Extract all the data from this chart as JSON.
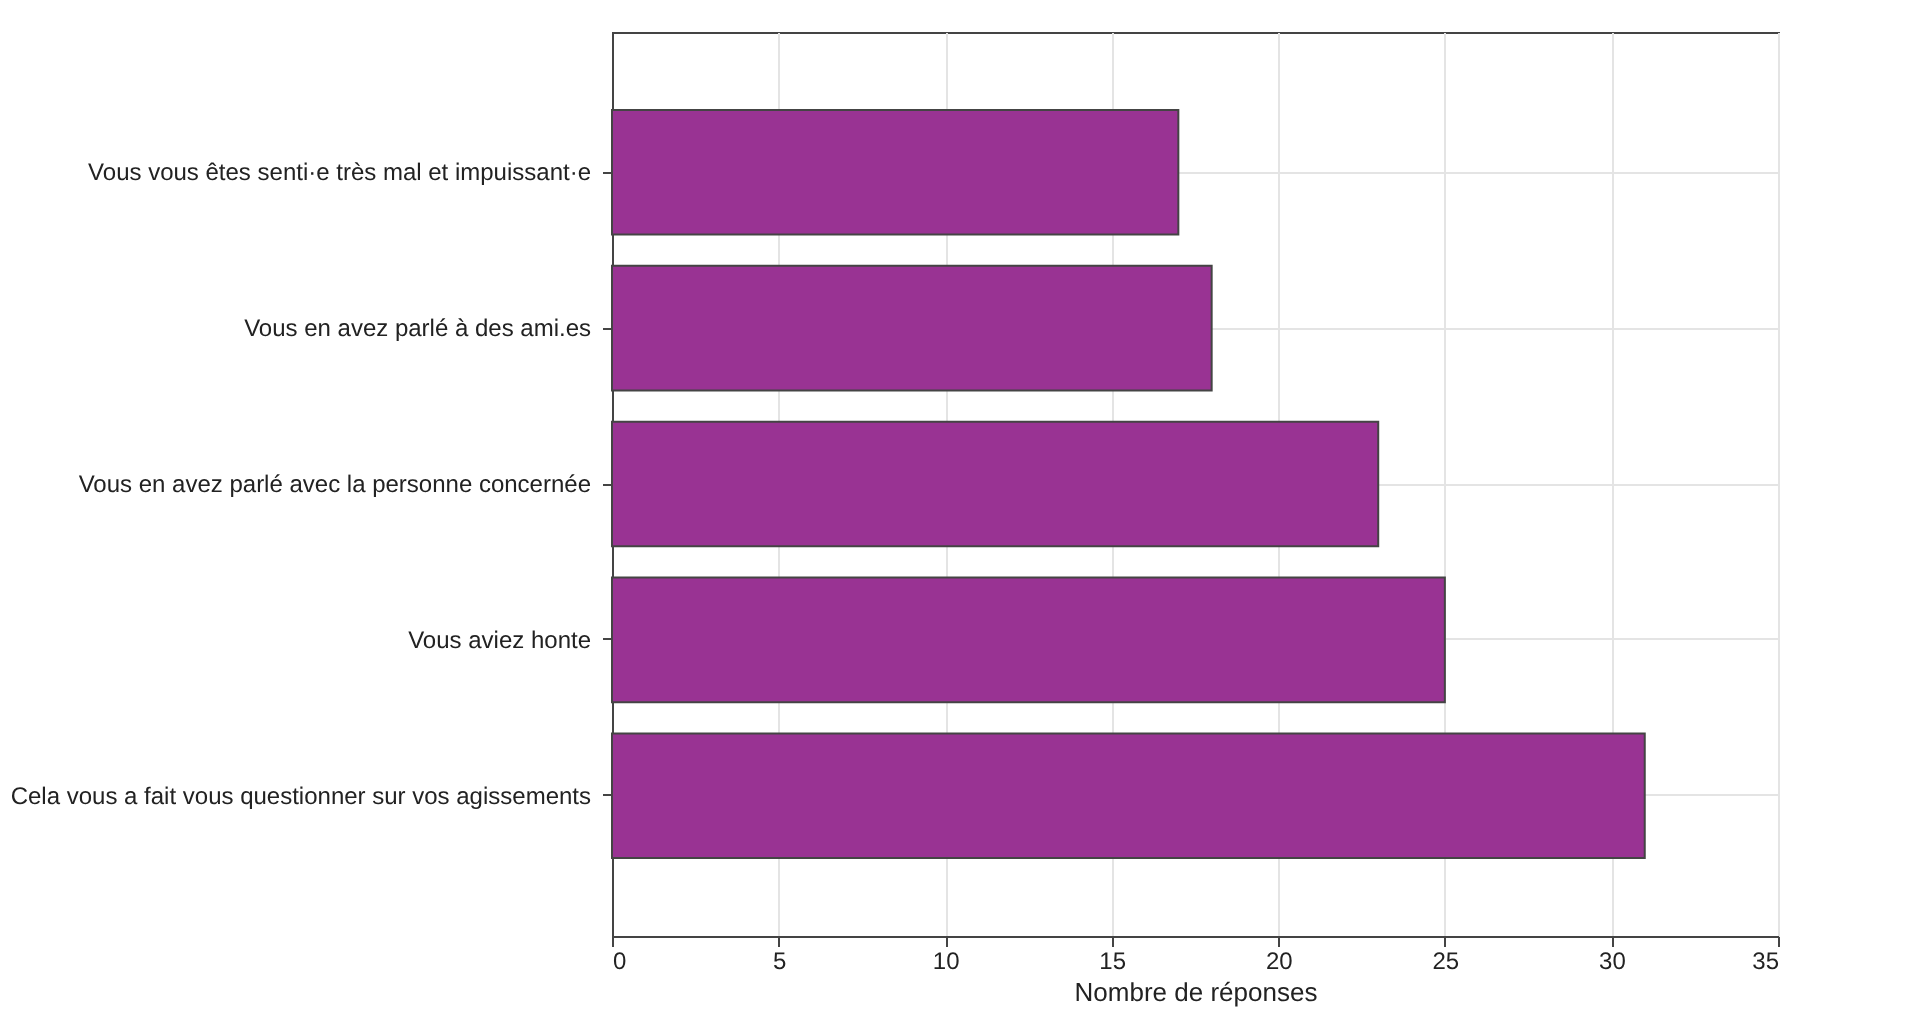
{
  "chart_data": {
    "type": "bar",
    "orientation": "horizontal",
    "xlabel": "Nombre de réponses",
    "categories": [
      "Vous vous êtes senti·e très mal et impuissant·e",
      "Vous en avez parlé à des ami.es",
      "Vous en avez parlé avec la personne concernée",
      "Vous aviez honte",
      "Cela vous a fait vous questionner sur vos agissements"
    ],
    "series": [
      {
        "color": "#993393",
        "values": [
          17,
          18,
          23,
          25,
          31
        ]
      }
    ],
    "xlim": [
      0,
      35
    ],
    "xticks": [
      0,
      5,
      10,
      15,
      20,
      25,
      30,
      35
    ],
    "grid": true
  }
}
